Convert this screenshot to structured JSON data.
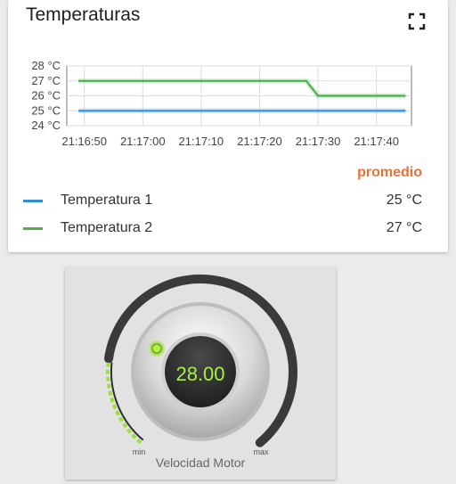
{
  "temperature_card": {
    "title": "Temperaturas",
    "fullscreen_icon": "fullscreen-icon",
    "aggregate_label": "promedio",
    "legend": [
      {
        "name": "Temperatura 1",
        "value": "25 °C",
        "color": "#2f8fdb"
      },
      {
        "name": "Temperatura 2",
        "value": "27 °C",
        "color": "#4caf50"
      }
    ]
  },
  "chart_data": {
    "type": "line",
    "title": "",
    "xlabel": "",
    "ylabel": "",
    "ylim": [
      24,
      28
    ],
    "xlim": [
      "21:16:47",
      "21:17:46"
    ],
    "y_ticks": [
      "28 °C",
      "27 °C",
      "26 °C",
      "25 °C",
      "24 °C"
    ],
    "x_ticks": [
      "21:16:50",
      "21:17:00",
      "21:17:10",
      "21:17:20",
      "21:17:30",
      "21:17:40"
    ],
    "grid": true,
    "series": [
      {
        "name": "Temperatura 1",
        "color": "#2f8fdb",
        "points": [
          [
            "21:16:49",
            25
          ],
          [
            "21:17:45",
            25
          ]
        ]
      },
      {
        "name": "Temperatura 2",
        "color": "#4caf50",
        "points": [
          [
            "21:16:49",
            27
          ],
          [
            "21:17:28",
            27
          ],
          [
            "21:17:30",
            26
          ],
          [
            "21:17:45",
            26
          ]
        ]
      }
    ]
  },
  "gauge": {
    "value_text": "28.00",
    "label": "Velocidad Motor",
    "min_label": "min",
    "max_label": "max",
    "level_fraction": 0.2,
    "accent_color": "#9be03c",
    "indicator_icon": "led-indicator-icon"
  }
}
